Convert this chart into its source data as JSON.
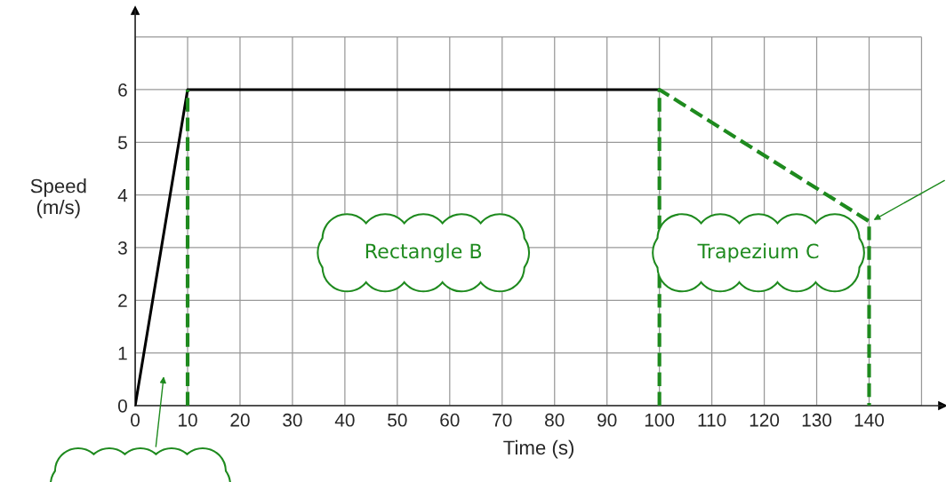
{
  "chart_data": {
    "type": "line",
    "xlabel": "Time (s)",
    "ylabel": "Speed\n(m/s)",
    "xlim": [
      0,
      154
    ],
    "ylim": [
      0,
      7.5
    ],
    "xticks": [
      0,
      10,
      20,
      30,
      40,
      50,
      60,
      70,
      80,
      90,
      100,
      110,
      120,
      130,
      140,
      {
        "value": 150,
        "label": null
      }
    ],
    "yticks": [
      0,
      1,
      2,
      3,
      4,
      5,
      6,
      {
        "value": 7,
        "label": null
      }
    ],
    "grid": true,
    "legend": false,
    "marker": "none",
    "series": [
      {
        "color": "#000000",
        "x": [
          0,
          10,
          100
        ],
        "values": [
          0,
          6,
          6
        ],
        "line_style": "solid"
      },
      {
        "color": "#1e8a1e",
        "x": [
          10,
          10,
          null,
          100,
          100,
          140,
          140
        ],
        "values": [
          0,
          6,
          null,
          0,
          6,
          3.5,
          0
        ],
        "line_style": "dashed"
      }
    ],
    "annotations": [
      "Rectangle B",
      "Trapezium C"
    ]
  }
}
